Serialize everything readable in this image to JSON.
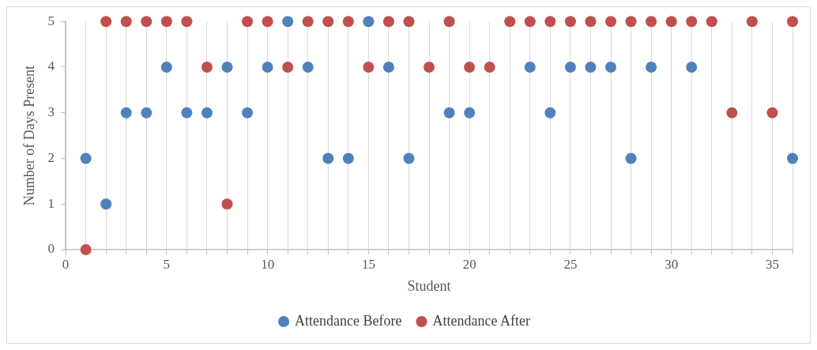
{
  "chart_data": {
    "type": "scatter",
    "xlabel": "Student",
    "ylabel": "Number of Days Present",
    "x": [
      1,
      2,
      3,
      4,
      5,
      6,
      7,
      8,
      9,
      10,
      11,
      12,
      13,
      14,
      15,
      16,
      17,
      18,
      19,
      20,
      21,
      22,
      23,
      24,
      25,
      26,
      27,
      28,
      29,
      30,
      31,
      32,
      33,
      34,
      35,
      36
    ],
    "series": [
      {
        "name": "Attendance Before",
        "color": "#4f81bd",
        "values": [
          2,
          1,
          3,
          3,
          4,
          3,
          3,
          4,
          3,
          4,
          5,
          4,
          2,
          2,
          5,
          4,
          2,
          null,
          3,
          3,
          null,
          null,
          4,
          3,
          4,
          4,
          4,
          2,
          4,
          null,
          4,
          null,
          null,
          null,
          null,
          2
        ]
      },
      {
        "name": "Attendance After",
        "color": "#c0504d",
        "values": [
          0,
          5,
          5,
          5,
          5,
          5,
          4,
          1,
          5,
          5,
          4,
          5,
          5,
          5,
          4,
          5,
          5,
          4,
          5,
          4,
          4,
          5,
          5,
          5,
          5,
          5,
          5,
          5,
          5,
          5,
          5,
          5,
          3,
          5,
          3,
          5
        ]
      }
    ],
    "xlim": [
      0,
      36
    ],
    "xticks": [
      0,
      {
        "value": 1,
        "label": null
      },
      {
        "value": 2,
        "label": null
      },
      {
        "value": 3,
        "label": null
      },
      {
        "value": 4,
        "label": null
      },
      5,
      {
        "value": 6,
        "label": null
      },
      {
        "value": 7,
        "label": null
      },
      {
        "value": 8,
        "label": null
      },
      {
        "value": 9,
        "label": null
      },
      10,
      {
        "value": 11,
        "label": null
      },
      {
        "value": 12,
        "label": null
      },
      {
        "value": 13,
        "label": null
      },
      {
        "value": 14,
        "label": null
      },
      15,
      {
        "value": 16,
        "label": null
      },
      {
        "value": 17,
        "label": null
      },
      {
        "value": 18,
        "label": null
      },
      {
        "value": 19,
        "label": null
      },
      20,
      {
        "value": 21,
        "label": null
      },
      {
        "value": 22,
        "label": null
      },
      {
        "value": 23,
        "label": null
      },
      {
        "value": 24,
        "label": null
      },
      25,
      {
        "value": 26,
        "label": null
      },
      {
        "value": 27,
        "label": null
      },
      {
        "value": 28,
        "label": null
      },
      {
        "value": 29,
        "label": null
      },
      30,
      {
        "value": 31,
        "label": null
      },
      {
        "value": 32,
        "label": null
      },
      {
        "value": 33,
        "label": null
      },
      {
        "value": 34,
        "label": null
      },
      35,
      {
        "value": 36,
        "label": null
      }
    ],
    "ylim": [
      0,
      5
    ],
    "yticks": [
      0,
      1,
      2,
      3,
      4,
      5
    ],
    "grid": "x",
    "legend": "bottom",
    "marker": "circle"
  }
}
